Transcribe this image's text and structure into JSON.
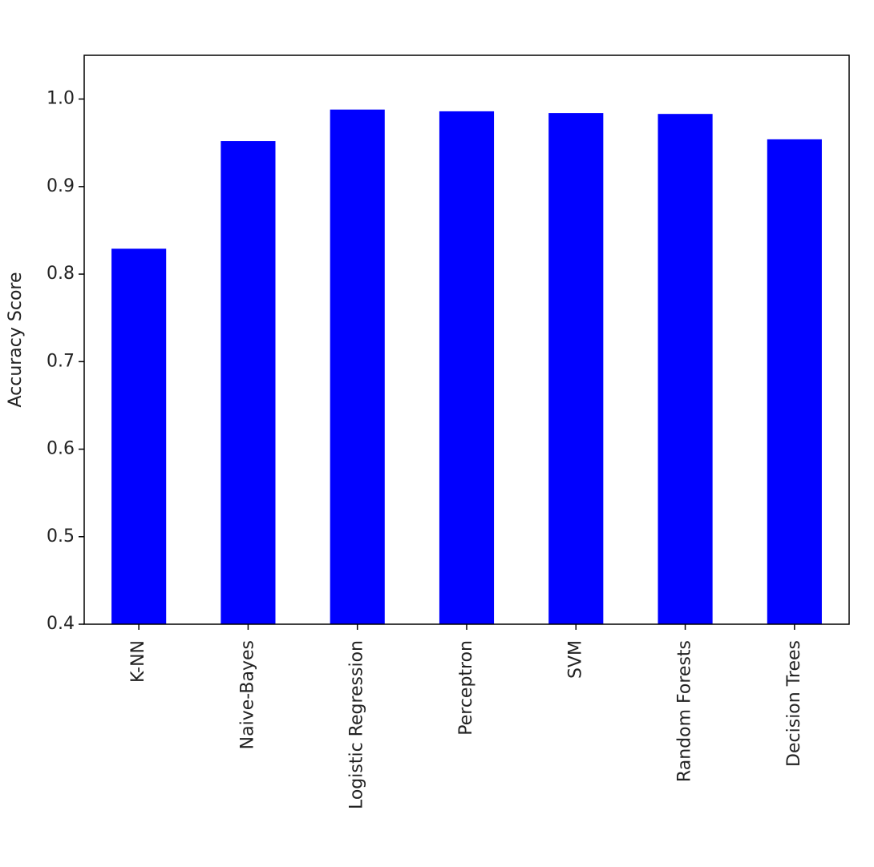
{
  "chart_data": {
    "type": "bar",
    "y_label": "Accuracy Score",
    "categories": [
      "K-NN",
      "Naive-Bayes",
      "Logistic Regression",
      "Perceptron",
      "SVM",
      "Random Forests",
      "Decision Trees"
    ],
    "values": [
      0.829,
      0.952,
      0.988,
      0.986,
      0.984,
      0.983,
      0.954
    ],
    "color": "#0000ff",
    "ylim": [
      0.4,
      1.05
    ],
    "yticks": [
      0.4,
      0.5,
      0.6,
      0.7,
      0.8,
      0.9,
      {
        "value": 1,
        "label": "1.0"
      }
    ],
    "grid": false
  }
}
